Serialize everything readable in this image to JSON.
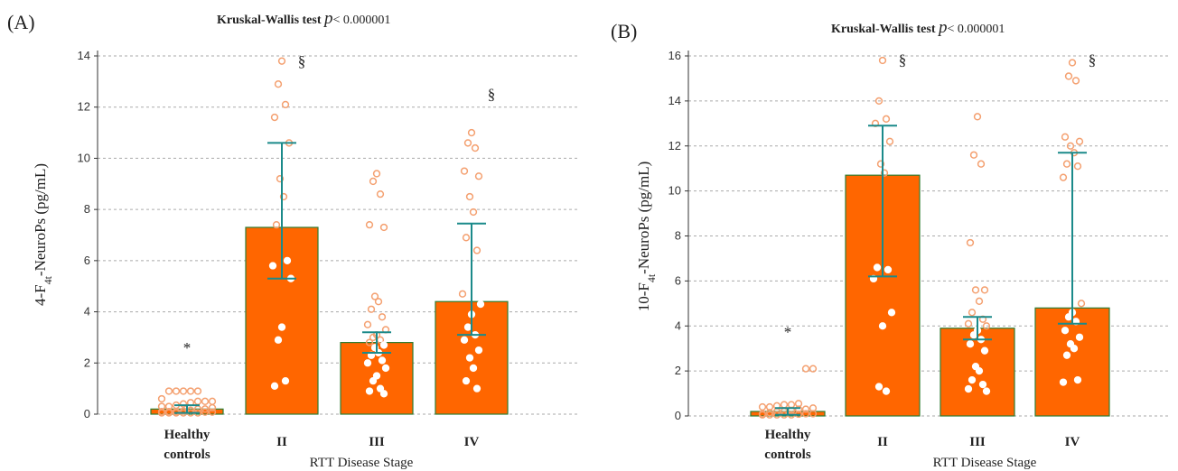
{
  "chart_data": [
    {
      "type": "bar",
      "panel": "(A)",
      "title_prefix": "Kruskal-Wallis test ",
      "title_p": "p",
      "title_value": "< 0.000001",
      "ylabel_parts": [
        "4-F",
        "4t",
        "-NeuroPs (pg/mL)"
      ],
      "xlabel": "RTT Disease Stage",
      "ylim": [
        0,
        14
      ],
      "yticks": [
        "0",
        "2",
        "4",
        "6",
        "8",
        "10",
        "12",
        "14"
      ],
      "grid": true,
      "categories": [
        [
          "Healthy",
          "controls"
        ],
        [
          "II"
        ],
        [
          "III"
        ],
        [
          "IV"
        ]
      ],
      "values": [
        0.2,
        7.3,
        2.8,
        4.4
      ],
      "error_low": [
        0.05,
        5.3,
        2.4,
        3.1
      ],
      "error_high": [
        0.35,
        10.6,
        3.2,
        7.45
      ],
      "points": [
        [
          0.05,
          0.05,
          0.05,
          0.05,
          0.05,
          0.05,
          0.08,
          0.08,
          0.1,
          0.1,
          0.1,
          0.12,
          0.15,
          0.2,
          0.2,
          0.25,
          0.3,
          0.3,
          0.35,
          0.4,
          0.45,
          0.5,
          0.5,
          0.5,
          0.6,
          0.9,
          0.9,
          0.9,
          0.9,
          0.9
        ],
        [
          13.8,
          12.9,
          12.1,
          11.6,
          10.6,
          9.2,
          8.5,
          7.4,
          6.0,
          5.8,
          5.3,
          3.4,
          2.9,
          1.3,
          1.1
        ],
        [
          9.4,
          9.1,
          8.6,
          7.4,
          7.3,
          4.6,
          4.4,
          4.1,
          3.8,
          3.5,
          3.3,
          3.1,
          3.0,
          2.9,
          2.8,
          2.7,
          2.6,
          2.4,
          2.3,
          2.1,
          2.0,
          1.8,
          1.5,
          1.3,
          1.0,
          0.9,
          0.8
        ],
        [
          11.0,
          10.6,
          10.4,
          9.5,
          9.3,
          8.5,
          7.9,
          6.9,
          6.4,
          4.7,
          4.3,
          3.9,
          3.4,
          3.1,
          2.9,
          2.5,
          2.2,
          1.8,
          1.3,
          1.0
        ]
      ],
      "annotations": [
        {
          "category": 0,
          "text": "*",
          "y": 2.4
        },
        {
          "category": 1,
          "text": "§",
          "y": 13.6
        },
        {
          "category": 3,
          "text": "§",
          "y": 12.3
        }
      ],
      "colors": {
        "bar": "#ff6600",
        "bar_edge": "#2e7d32",
        "error": "#1b8a8a",
        "point": "#f4a070",
        "grid": "#aaaaaa"
      }
    },
    {
      "type": "bar",
      "panel": "(B)",
      "title_prefix": "Kruskal-Wallis test ",
      "title_p": "p",
      "title_value": "< 0.000001",
      "ylabel_parts": [
        "10-F",
        "4t",
        "-NeuroPs (pg/mL)"
      ],
      "xlabel": "RTT Disease Stage",
      "ylim": [
        0,
        16
      ],
      "yticks": [
        "0",
        "2",
        "4",
        "6",
        "8",
        "10",
        "12",
        "14",
        "16"
      ],
      "grid": true,
      "categories": [
        [
          "Healthy",
          "controls"
        ],
        [
          "II"
        ],
        [
          "III"
        ],
        [
          "IV"
        ]
      ],
      "values": [
        0.2,
        10.7,
        3.9,
        4.8
      ],
      "error_low": [
        0.05,
        6.2,
        3.4,
        4.1
      ],
      "error_high": [
        0.35,
        12.9,
        4.4,
        11.7
      ],
      "points": [
        [
          0.05,
          0.05,
          0.05,
          0.05,
          0.05,
          0.08,
          0.1,
          0.1,
          0.1,
          0.15,
          0.2,
          0.2,
          0.25,
          0.3,
          0.3,
          0.35,
          0.4,
          0.4,
          0.45,
          0.5,
          0.5,
          0.55,
          2.1,
          2.1
        ],
        [
          15.8,
          14.0,
          13.2,
          13.0,
          12.2,
          11.2,
          10.8,
          6.6,
          6.5,
          6.1,
          4.6,
          4.0,
          1.3,
          1.1
        ],
        [
          13.3,
          11.6,
          11.2,
          7.7,
          5.6,
          5.6,
          5.1,
          4.6,
          4.3,
          4.1,
          4.0,
          3.8,
          3.6,
          3.4,
          3.2,
          2.9,
          2.2,
          2.0,
          1.6,
          1.4,
          1.2,
          1.1
        ],
        [
          15.7,
          15.1,
          14.9,
          12.4,
          12.2,
          12.0,
          11.7,
          11.2,
          11.1,
          10.6,
          5.0,
          4.6,
          4.4,
          4.2,
          3.8,
          3.5,
          3.2,
          3.0,
          2.7,
          1.6,
          1.5
        ]
      ],
      "annotations": [
        {
          "category": 0,
          "text": "*",
          "y": 3.5
        },
        {
          "category": 1,
          "text": "§",
          "y": 15.6
        },
        {
          "category": 3,
          "text": "§",
          "y": 15.6
        }
      ],
      "colors": {
        "bar": "#ff6600",
        "bar_edge": "#2e7d32",
        "error": "#1b8a8a",
        "point": "#f4a070",
        "grid": "#aaaaaa"
      }
    }
  ]
}
